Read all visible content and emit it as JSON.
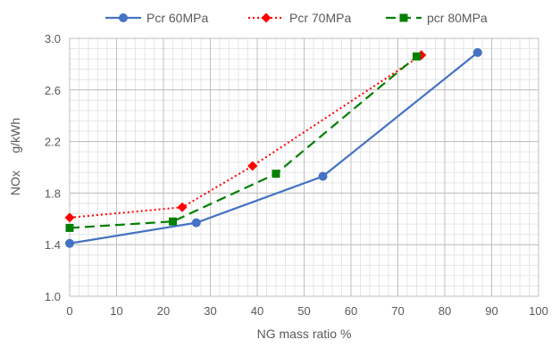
{
  "chart_data": {
    "type": "line",
    "title": "",
    "xlabel": "NG mass ratio  %",
    "ylabel": "NOx     g/kWh",
    "xlim": [
      0,
      100
    ],
    "ylim": [
      1.0,
      3.0
    ],
    "x_ticks": [
      0,
      10,
      20,
      30,
      40,
      50,
      60,
      70,
      80,
      90,
      100
    ],
    "y_ticks": [
      1.0,
      1.4,
      1.8,
      2.2,
      2.6,
      3.0
    ],
    "x_tick_labels": [
      "0",
      "10",
      "20",
      "30",
      "40",
      "50",
      "60",
      "70",
      "80",
      "90",
      "100"
    ],
    "y_tick_labels": [
      "1.0",
      "1.4",
      "1.8",
      "2.2",
      "2.6",
      "3.0"
    ],
    "grid": true,
    "legend_position": "top",
    "series": [
      {
        "name": "Pcr 60MPa",
        "color": "#4472c4",
        "line_style": "solid",
        "marker": "circle",
        "x": [
          0,
          27,
          54,
          87
        ],
        "y": [
          1.41,
          1.57,
          1.93,
          2.89
        ]
      },
      {
        "name": "Pcr 70MPa",
        "color": "#ff0000",
        "line_style": "dotted",
        "marker": "diamond",
        "x": [
          0,
          24,
          39,
          75
        ],
        "y": [
          1.61,
          1.69,
          2.01,
          2.87
        ]
      },
      {
        "name": "pcr 80MPa",
        "color": "#008000",
        "line_style": "dashed",
        "marker": "square",
        "x": [
          0,
          22,
          44,
          74
        ],
        "y": [
          1.53,
          1.58,
          1.95,
          2.86
        ]
      }
    ]
  }
}
